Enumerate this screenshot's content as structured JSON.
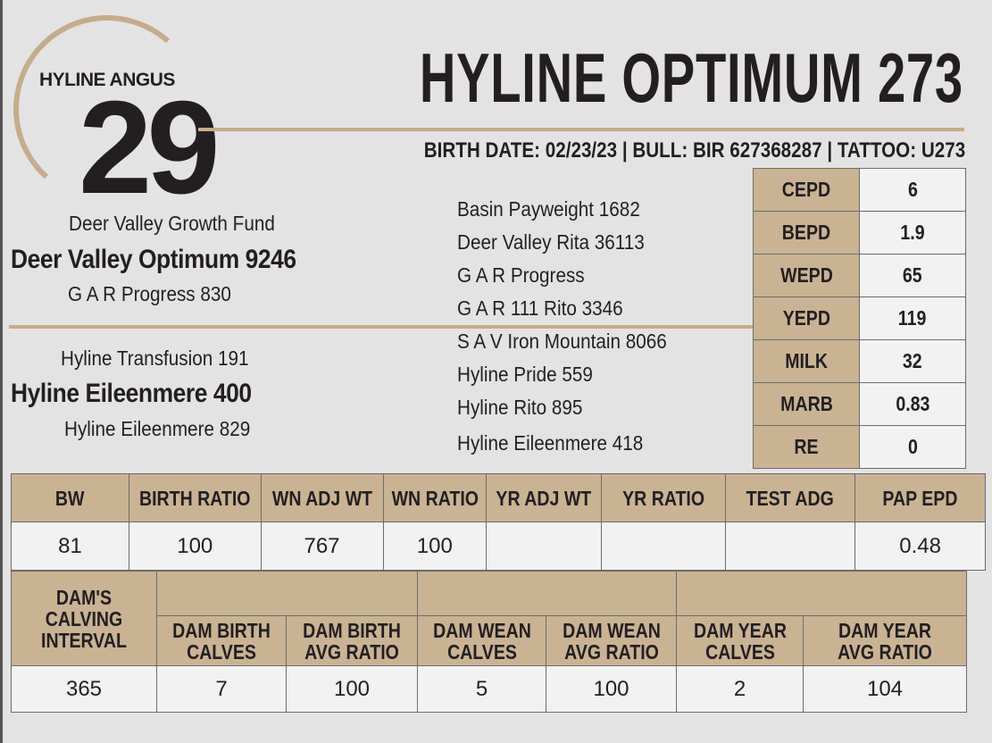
{
  "lot": {
    "brand": "HYLINE ANGUS",
    "number": "29"
  },
  "animal": {
    "name": "HYLINE OPTIMUM 273",
    "birth_line": "BIRTH DATE: 02/23/23 | BULL:  BIR 627368287 | TATTOO: U273"
  },
  "pedigree": {
    "sire_sire": "Deer Valley Growth Fund",
    "sire": "Deer Valley Optimum 9246",
    "sire_dam": "G A R Progress 830",
    "dam_sire": "Hyline Transfusion 191",
    "dam": "Hyline Eileenmere 400",
    "dam_dam": "Hyline Eileenmere 829",
    "great_grandparents": [
      "Basin Payweight 1682",
      "Deer Valley Rita 36113",
      "G A R Progress",
      "G A R 111 Rito 3346",
      "S A V Iron Mountain 8066",
      "Hyline Pride 559",
      "Hyline Rito 895",
      "Hyline Eileenmere 418"
    ]
  },
  "epds": [
    {
      "label": "CEPD",
      "value": "6"
    },
    {
      "label": "BEPD",
      "value": "1.9"
    },
    {
      "label": "WEPD",
      "value": "65"
    },
    {
      "label": "YEPD",
      "value": "119"
    },
    {
      "label": "MILK",
      "value": "32"
    },
    {
      "label": "MARB",
      "value": "0.83"
    },
    {
      "label": "RE",
      "value": "0"
    }
  ],
  "performance": {
    "headers": [
      "BW",
      "BIRTH RATIO",
      "WN ADJ WT",
      "WN RATIO",
      "YR ADJ WT",
      "YR RATIO",
      "TEST ADG",
      "PAP EPD"
    ],
    "values": [
      "81",
      "100",
      "767",
      "100",
      "",
      "",
      "",
      "0.48"
    ]
  },
  "dam_record": {
    "interval_header": "DAM'S CALVING INTERVAL",
    "headers": [
      "DAM BIRTH CALVES",
      "DAM BIRTH AVG RATIO",
      "DAM WEAN CALVES",
      "DAM WEAN AVG RATIO",
      "DAM YEAR CALVES",
      "DAM YEAR AVG RATIO"
    ],
    "values": [
      "365",
      "7",
      "100",
      "5",
      "100",
      "2",
      "104"
    ]
  },
  "colors": {
    "tan": "#c9b394",
    "rule": "#c4ad8d",
    "text": "#231f20",
    "background": "#e4e3e3"
  }
}
